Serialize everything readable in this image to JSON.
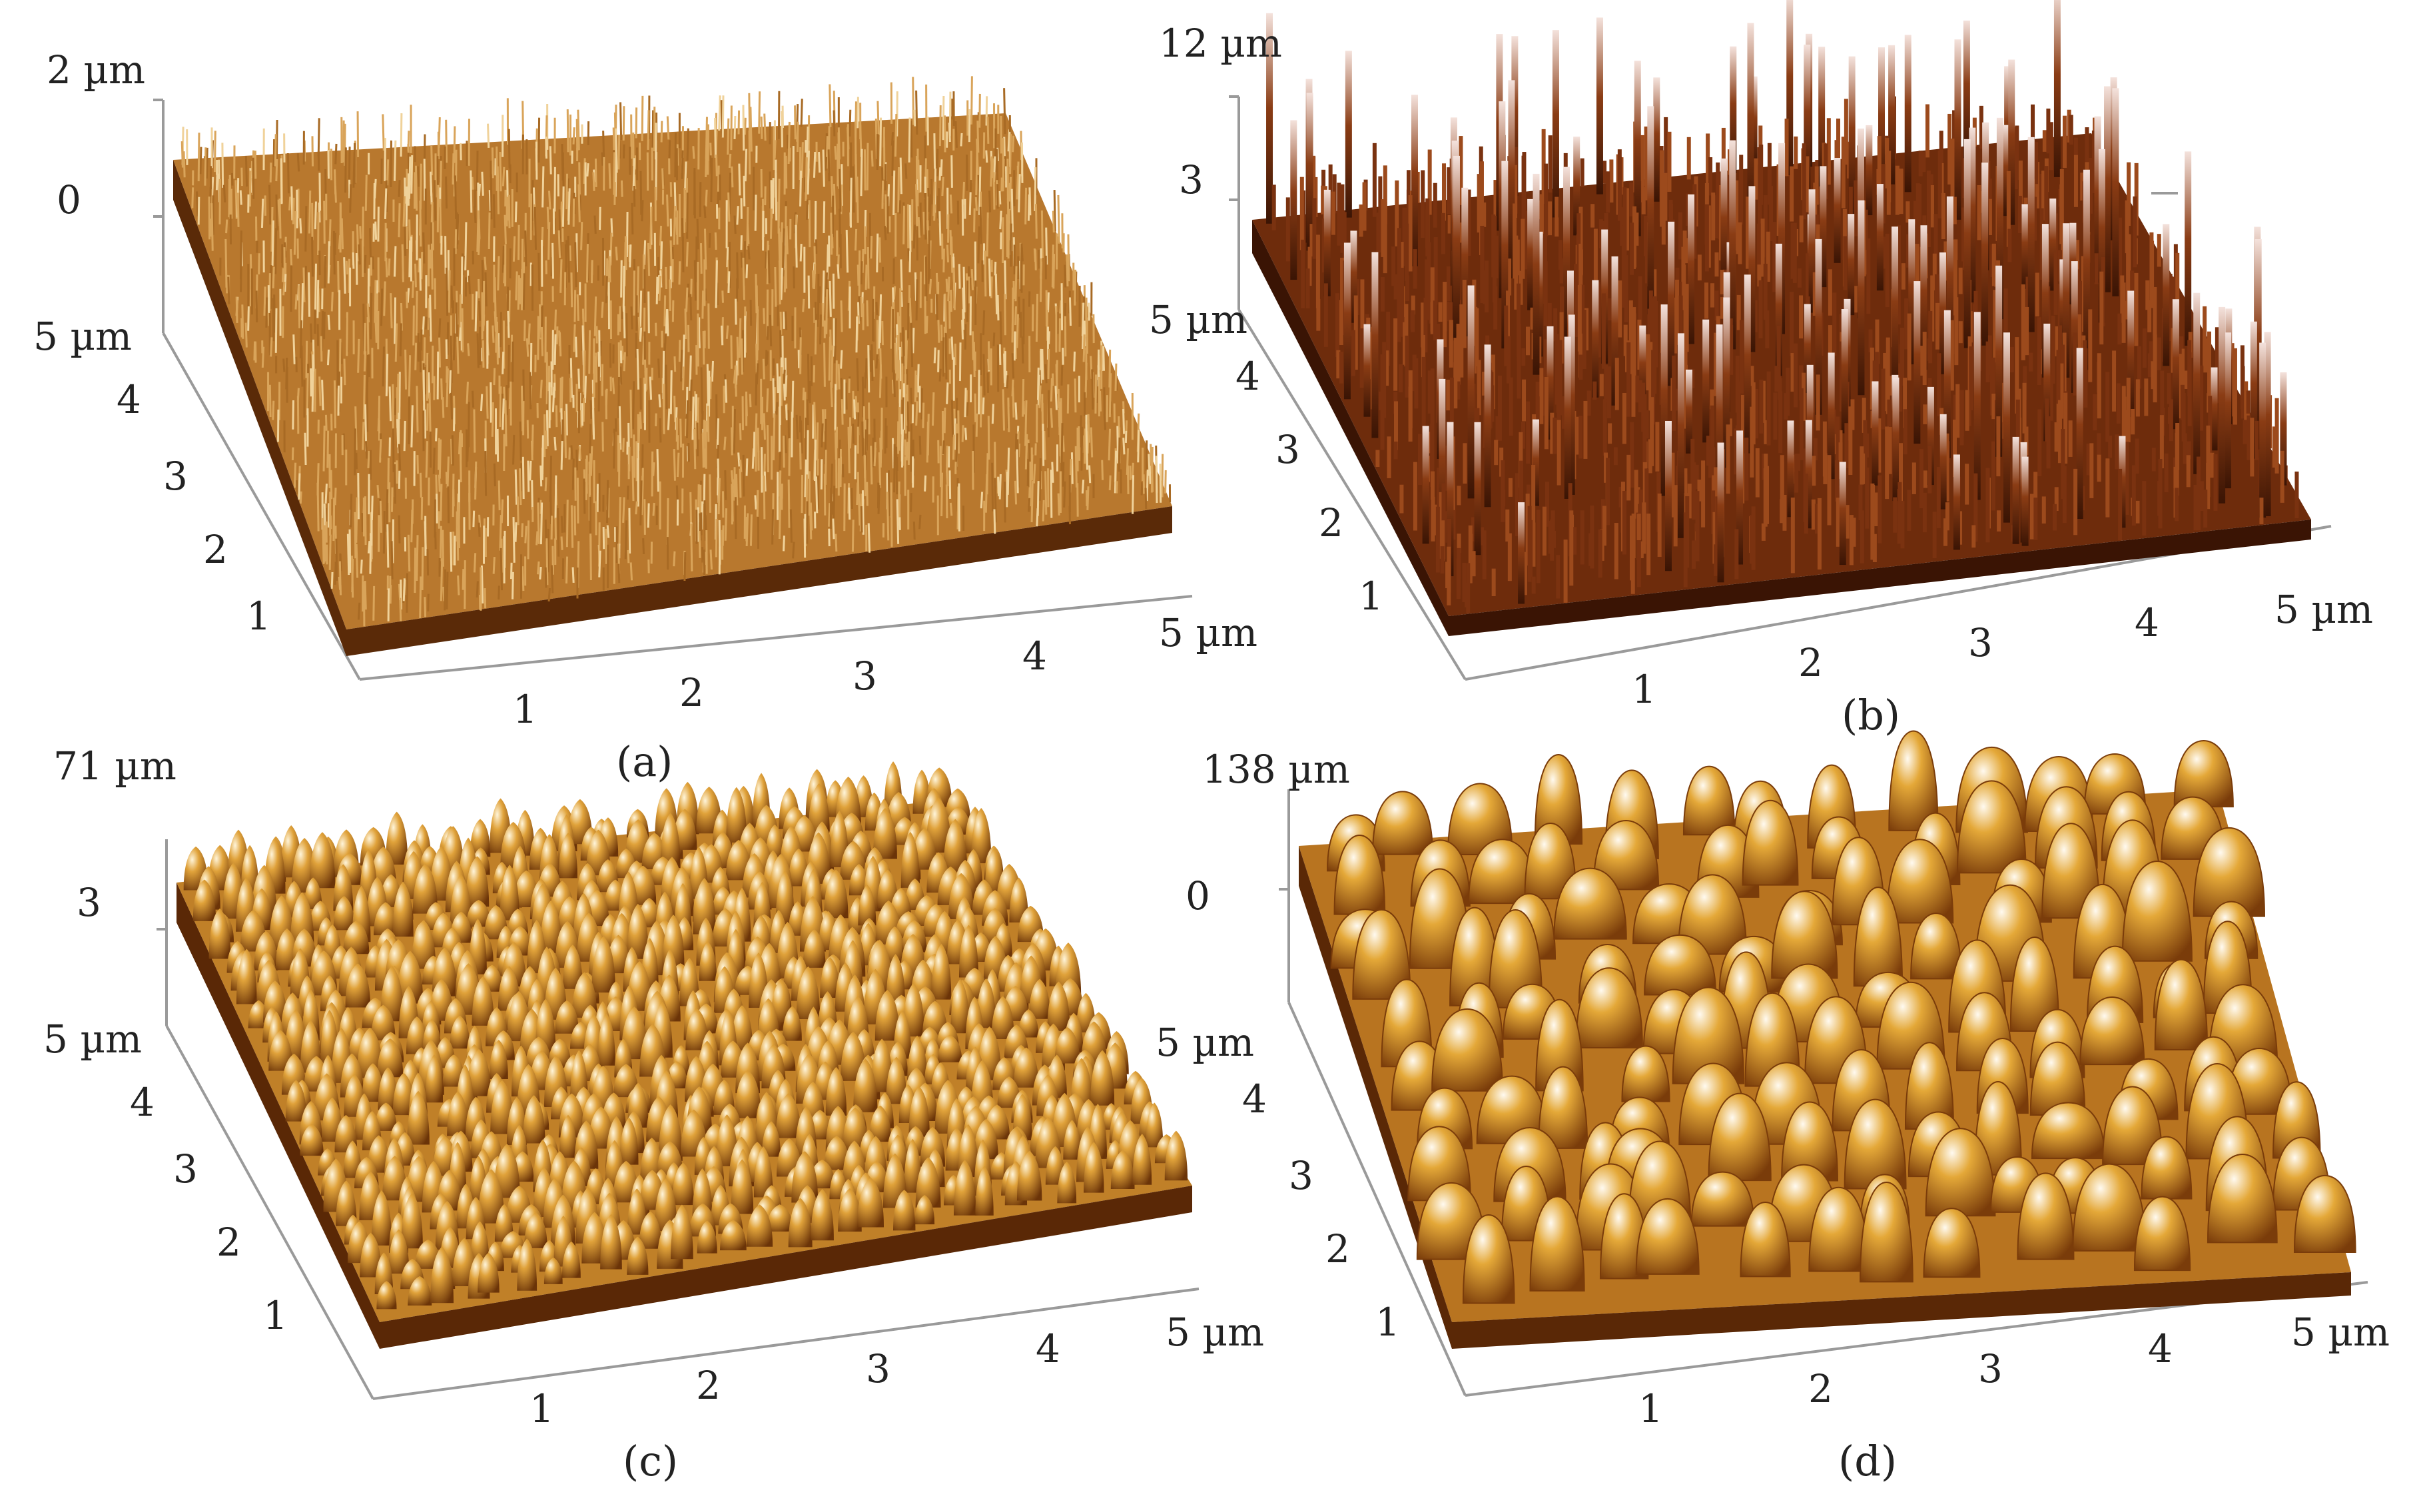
{
  "figure": {
    "panels": [
      {
        "id": "a",
        "caption": "(a)",
        "z_top": "2 µm",
        "z_mid": "0",
        "y_ticks": [
          "5 µm",
          "4",
          "3",
          "2",
          "1"
        ],
        "x_ticks": [
          "1",
          "2",
          "3",
          "4",
          "5 µm"
        ],
        "texture": "fine-spikes",
        "colors": {
          "base": "#8a4a12",
          "mid": "#c98a3a",
          "top": "#f3d9a8"
        }
      },
      {
        "id": "b",
        "caption": "(b)",
        "z_top": "12 µm",
        "z_mid": "3",
        "y_ticks": [
          "5 µm",
          "4",
          "3",
          "2",
          "1"
        ],
        "x_ticks": [
          "1",
          "2",
          "3",
          "4",
          "5 µm"
        ],
        "texture": "tall-needles",
        "colors": {
          "base": "#4a1c06",
          "mid": "#8a3c14",
          "top": "#f4e2dc"
        }
      },
      {
        "id": "c",
        "caption": "(c)",
        "z_top": "71 µm",
        "z_mid": "3",
        "y_ticks": [
          "5 µm",
          "4",
          "3",
          "2",
          "1"
        ],
        "x_ticks": [
          "1",
          "2",
          "3",
          "4",
          "5 µm"
        ],
        "texture": "small-cones",
        "colors": {
          "base": "#6b3408",
          "mid": "#c98a24",
          "top": "#fbecc4"
        }
      },
      {
        "id": "d",
        "caption": "(d)",
        "z_top": "138 µm",
        "z_mid": "0",
        "y_ticks": [
          "5 µm",
          "4",
          "3",
          "2",
          "1"
        ],
        "x_ticks": [
          "1",
          "2",
          "3",
          "4",
          "5 µm"
        ],
        "texture": "large-domes",
        "colors": {
          "base": "#6b3408",
          "mid": "#d49a30",
          "top": "#fff2d2"
        }
      }
    ]
  }
}
